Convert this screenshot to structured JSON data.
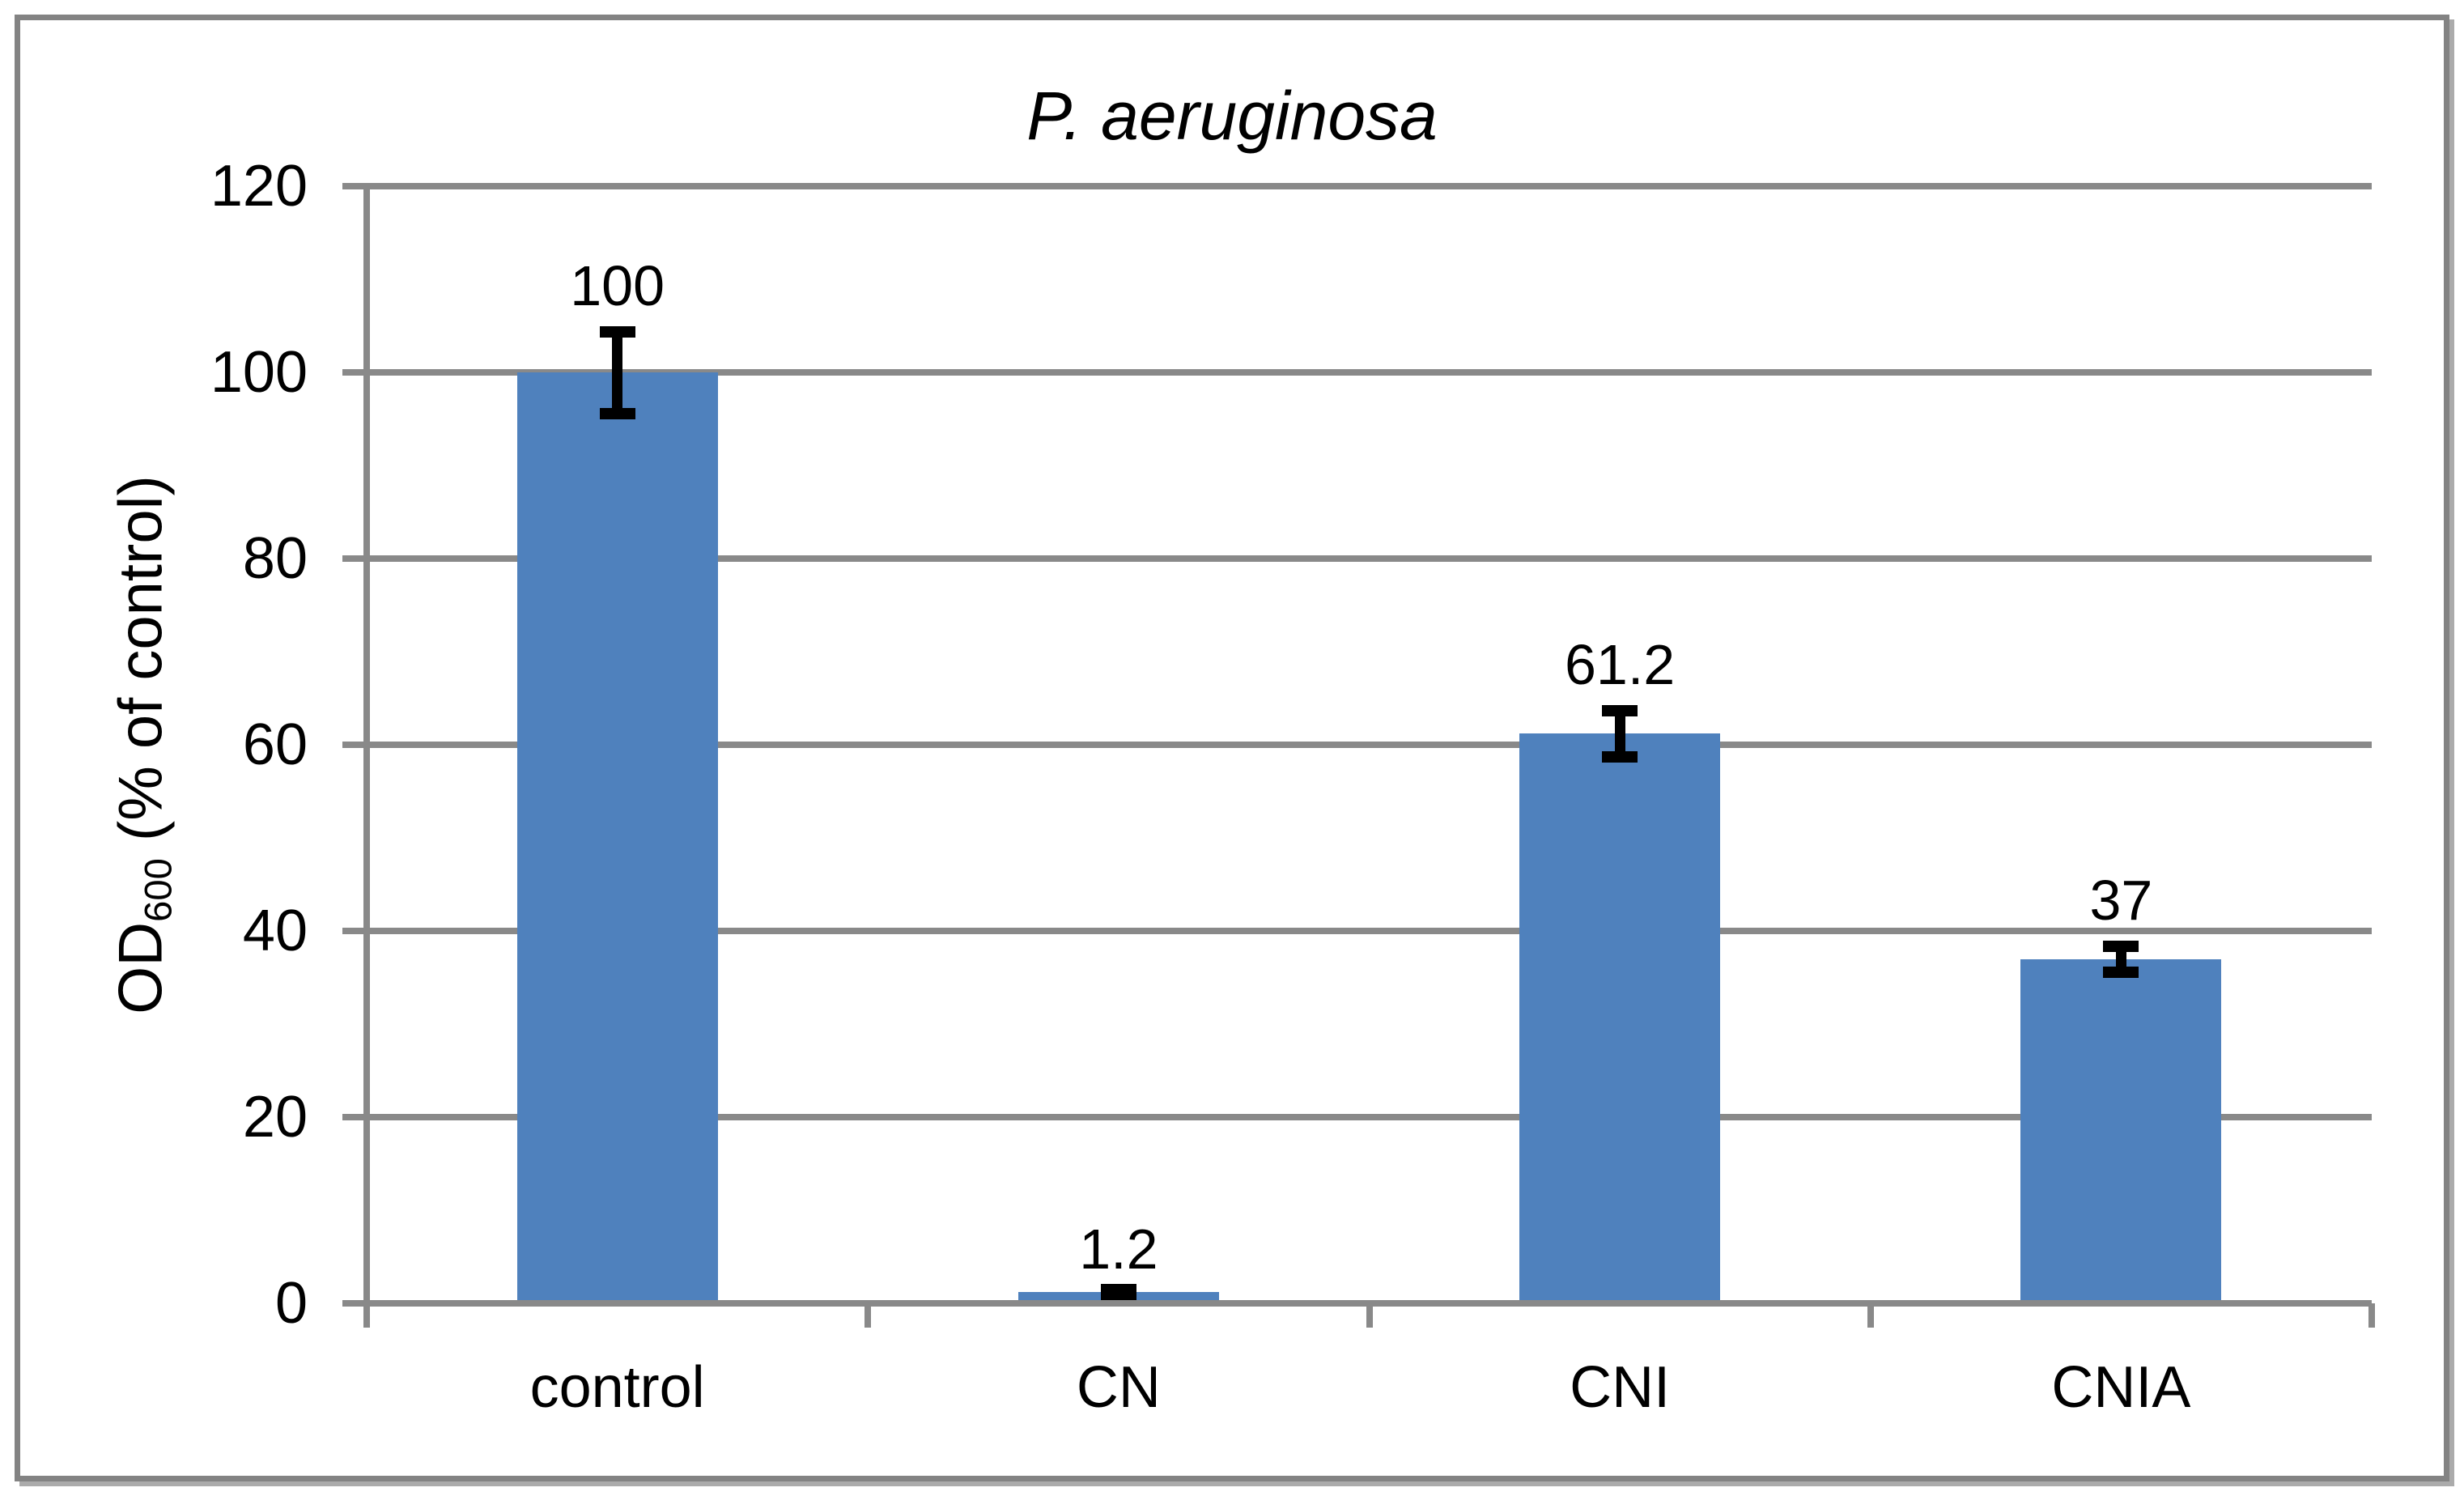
{
  "chart_data": {
    "type": "bar",
    "title": "P. aeruginosa",
    "categories": [
      "control",
      "CN",
      "CNI",
      "CNIA"
    ],
    "values": [
      100,
      1.2,
      61.2,
      37
    ],
    "value_labels": [
      "100",
      "1.2",
      "61.2",
      "37"
    ],
    "errors": [
      5,
      0.3,
      3.1,
      2
    ],
    "ylabel": {
      "prefix": "OD",
      "subscript": "600",
      "suffix": " (% of control)"
    },
    "xlabel": "",
    "ylim": [
      0,
      120
    ],
    "y_ticks": [
      0,
      20,
      40,
      60,
      80,
      100,
      120
    ],
    "y_tick_labels": [
      "0",
      "20",
      "40",
      "60",
      "80",
      "100",
      "120"
    ],
    "grid": "horizontal-major",
    "legend": "none",
    "colors": {
      "bar_fill": "#4F81BD",
      "gridline": "#898989",
      "axis_line": "#898989",
      "error_bar": "#000000",
      "text": "#000000",
      "frame_border": "#838383",
      "background": "#FFFFFF"
    }
  }
}
